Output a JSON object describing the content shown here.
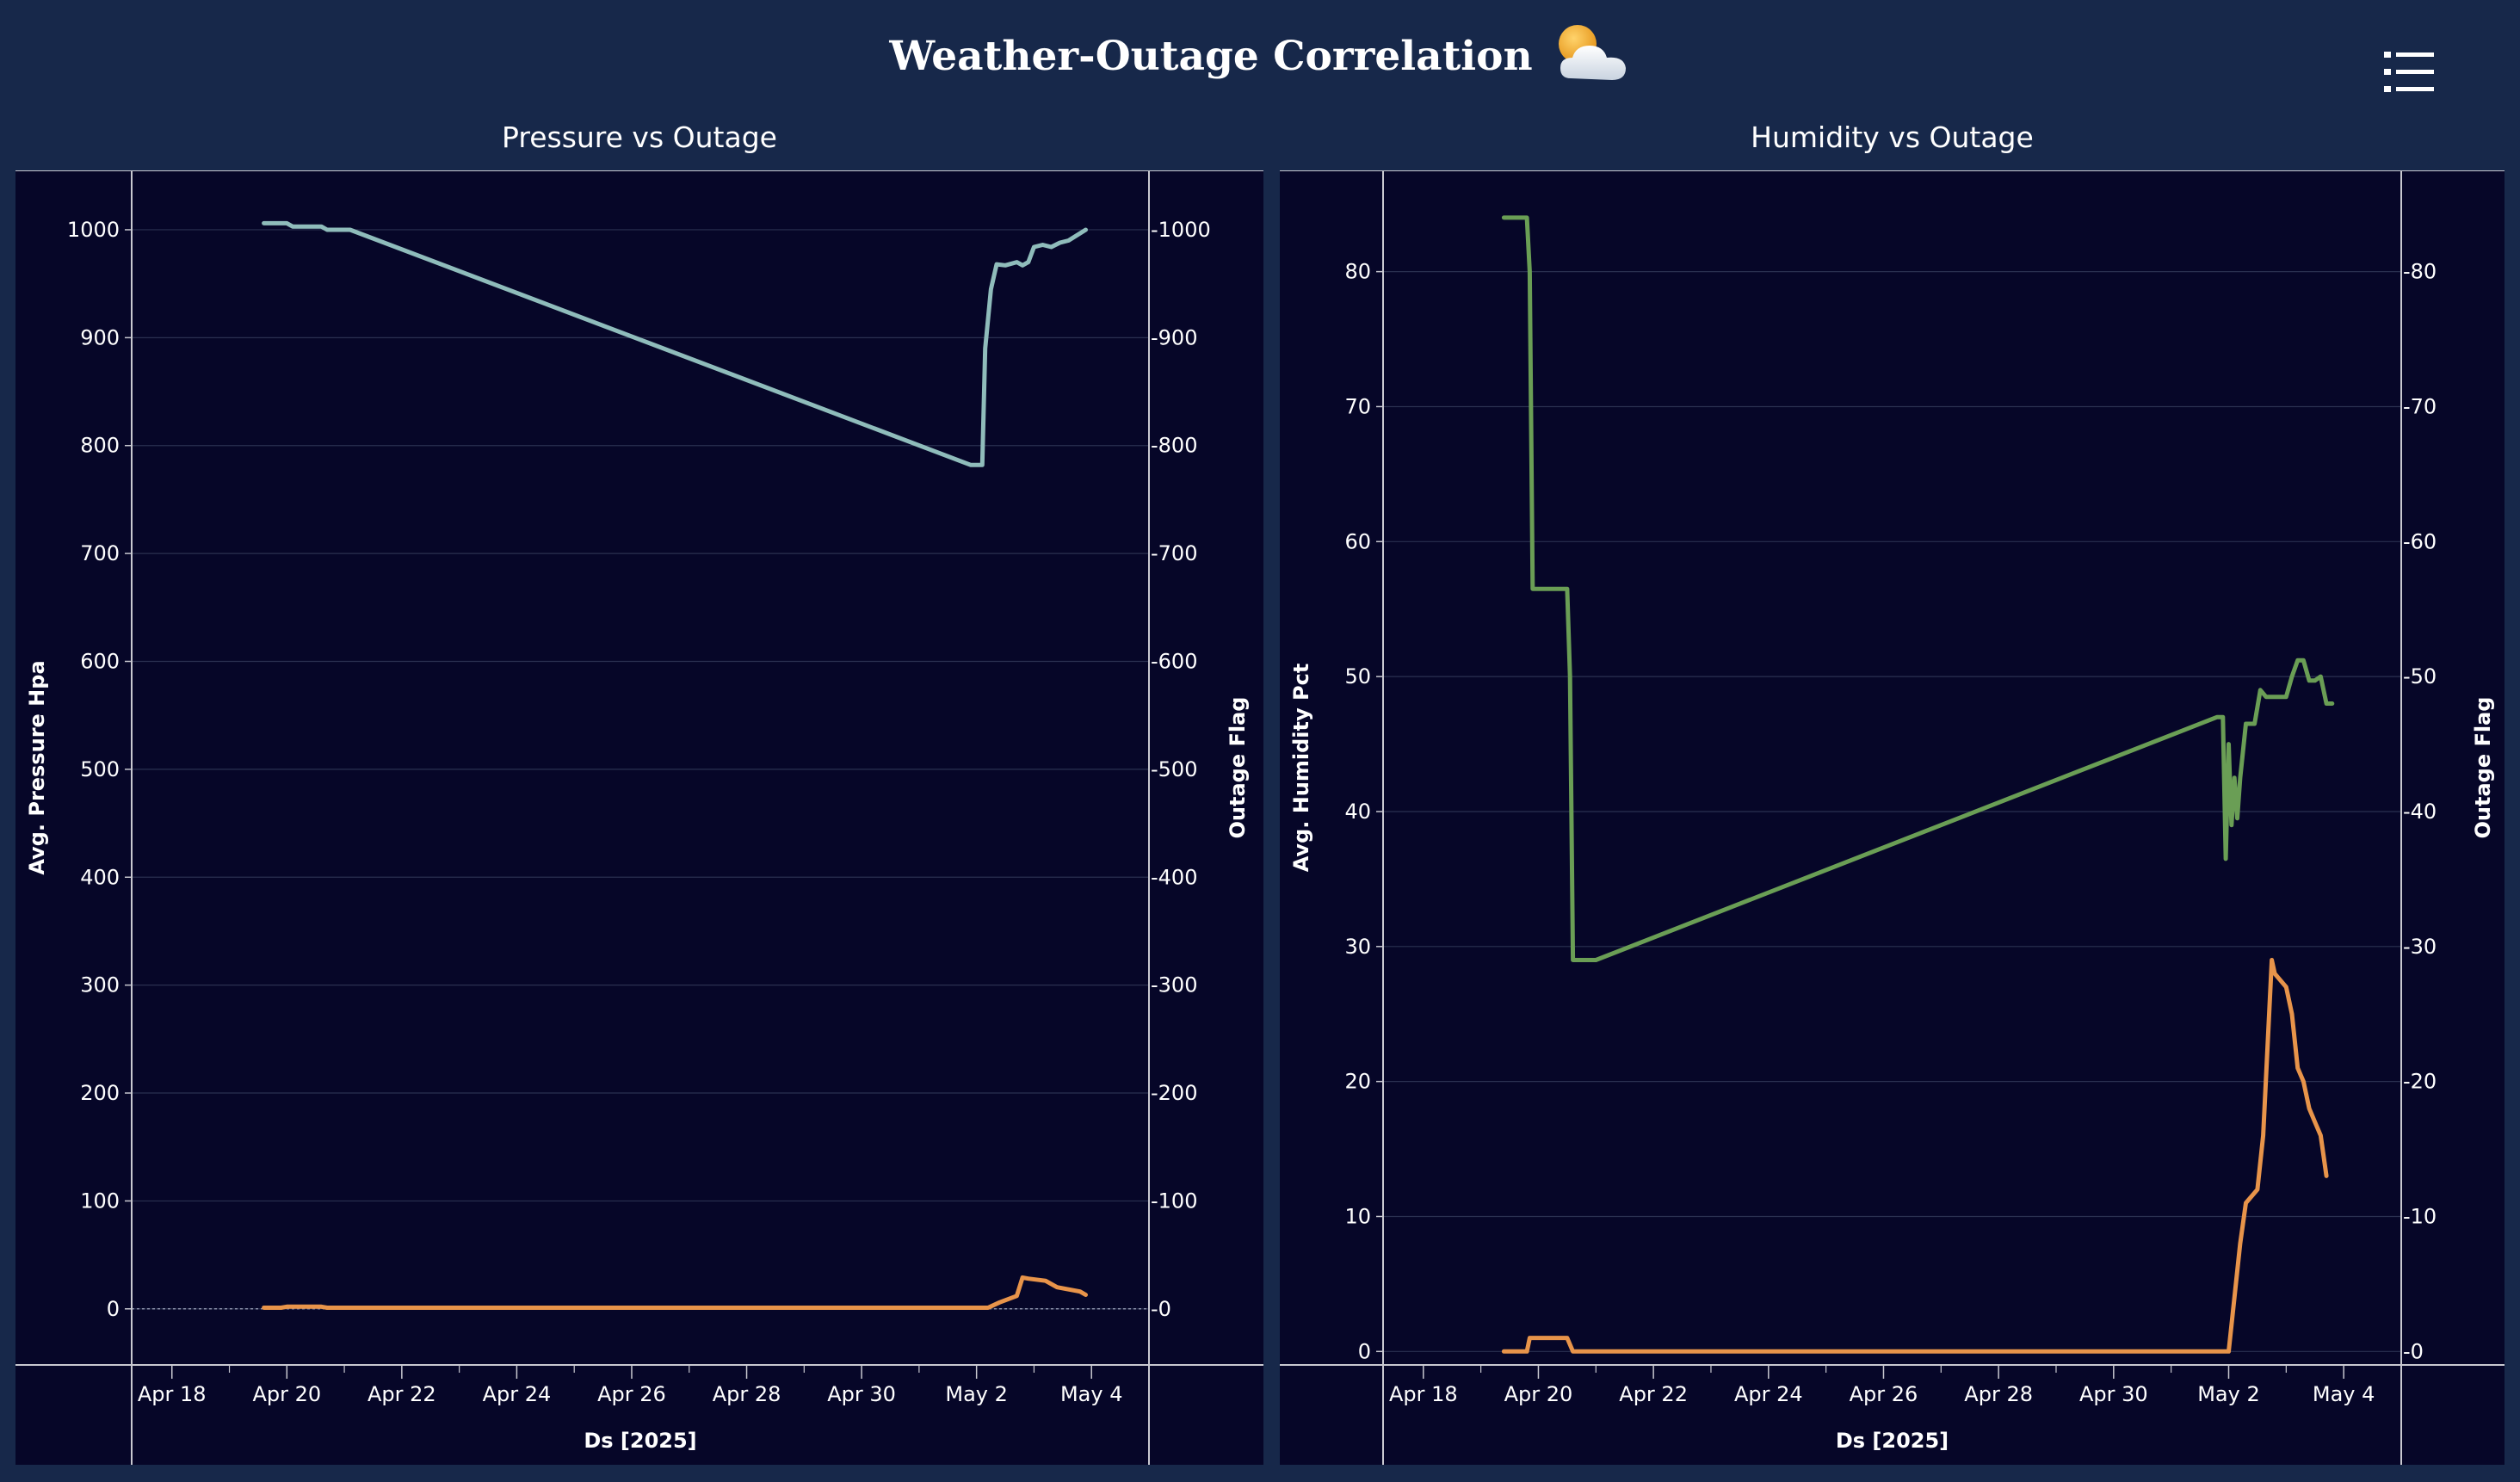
{
  "header": {
    "title": "Weather-Outage Correlation",
    "weather_icon": "sun-behind-cloud-icon",
    "menu_icon": "list-menu-icon"
  },
  "colors": {
    "background": "#17284a",
    "plot_background": "#060628",
    "pressure_line": "#8fbcbb",
    "humidity_line": "#6a9e55",
    "outage_line": "#e8944a"
  },
  "chart_data": [
    {
      "type": "line",
      "title": "Pressure vs Outage",
      "xlabel": "Ds [2025]",
      "ylabel": "Avg. Pressure Hpa",
      "y2label": "Outage Flag",
      "xlim": [
        17.3,
        35.0
      ],
      "ylim": [
        -52,
        1055
      ],
      "yticks": [
        0,
        100,
        200,
        300,
        400,
        500,
        600,
        700,
        800,
        900,
        1000
      ],
      "x_ticks": [
        {
          "x": 18,
          "label": "Apr 18"
        },
        {
          "x": 20,
          "label": "Apr 20"
        },
        {
          "x": 22,
          "label": "Apr 22"
        },
        {
          "x": 24,
          "label": "Apr 24"
        },
        {
          "x": 26,
          "label": "Apr 26"
        },
        {
          "x": 28,
          "label": "Apr 28"
        },
        {
          "x": 30,
          "label": "Apr 30"
        },
        {
          "x": 32,
          "label": "May 2"
        },
        {
          "x": 34,
          "label": "May 4"
        }
      ],
      "series": [
        {
          "name": "Avg. Pressure Hpa",
          "color": "#8fbcbb",
          "x": [
            19.6,
            20.0,
            20.1,
            20.6,
            20.7,
            21.1,
            31.9,
            32.1,
            32.15,
            32.25,
            32.35,
            32.5,
            32.7,
            32.8,
            32.9,
            33.0,
            33.15,
            33.3,
            33.45,
            33.6,
            33.75,
            33.9
          ],
          "y": [
            1006,
            1006,
            1003,
            1003,
            1000,
            1000,
            782,
            782,
            890,
            945,
            968,
            967,
            970,
            967,
            970,
            984,
            986,
            984,
            988,
            990,
            995,
            1000
          ]
        },
        {
          "name": "Outage Flag",
          "color": "#e8944a",
          "x": [
            19.6,
            19.9,
            20.0,
            20.6,
            20.7,
            32.2,
            32.4,
            32.6,
            32.7,
            32.8,
            32.9,
            33.2,
            33.4,
            33.6,
            33.8,
            33.9
          ],
          "y": [
            1,
            1,
            2,
            2,
            1,
            1,
            6,
            10,
            12,
            29,
            28,
            26,
            20,
            18,
            16,
            13
          ]
        }
      ]
    },
    {
      "type": "line",
      "title": "Humidity vs Outage",
      "xlabel": "Ds [2025]",
      "ylabel": "Avg. Humidity Pct",
      "y2label": "Outage Flag",
      "xlim": [
        17.3,
        35.0
      ],
      "ylim": [
        -1,
        87.5
      ],
      "yticks": [
        0,
        10,
        20,
        30,
        40,
        50,
        60,
        70,
        80
      ],
      "x_ticks": [
        {
          "x": 18,
          "label": "Apr 18"
        },
        {
          "x": 20,
          "label": "Apr 20"
        },
        {
          "x": 22,
          "label": "Apr 22"
        },
        {
          "x": 24,
          "label": "Apr 24"
        },
        {
          "x": 26,
          "label": "Apr 26"
        },
        {
          "x": 28,
          "label": "Apr 28"
        },
        {
          "x": 30,
          "label": "Apr 30"
        },
        {
          "x": 32,
          "label": "May 2"
        },
        {
          "x": 34,
          "label": "May 4"
        }
      ],
      "series": [
        {
          "name": "Avg. Humidity Pct",
          "color": "#6a9e55",
          "x": [
            19.4,
            19.8,
            19.85,
            19.9,
            20.5,
            20.55,
            20.6,
            21.0,
            31.8,
            31.9,
            31.95,
            32.0,
            32.05,
            32.1,
            32.15,
            32.2,
            32.3,
            32.45,
            32.55,
            32.65,
            32.75,
            33.0,
            33.1,
            33.2,
            33.3,
            33.4,
            33.5,
            33.6,
            33.7,
            33.8
          ],
          "y": [
            84,
            84,
            80,
            56.5,
            56.5,
            50,
            29,
            29,
            47,
            47,
            36.5,
            45,
            39,
            42.5,
            39.5,
            42.5,
            46.5,
            46.5,
            49,
            48.5,
            48.5,
            48.5,
            50,
            51.2,
            51.2,
            49.7,
            49.7,
            50,
            48,
            48
          ]
        },
        {
          "name": "Outage Flag",
          "color": "#e8944a",
          "x": [
            19.4,
            19.8,
            19.85,
            20.5,
            20.6,
            32.0,
            32.1,
            32.2,
            32.3,
            32.5,
            32.6,
            32.75,
            32.8,
            33.0,
            33.1,
            33.2,
            33.3,
            33.4,
            33.5,
            33.6,
            33.7
          ],
          "y": [
            0,
            0,
            1,
            1,
            0,
            0,
            4,
            8,
            11,
            12,
            16,
            29,
            28,
            27,
            25,
            21,
            20,
            18,
            17,
            16,
            13
          ]
        }
      ]
    }
  ]
}
